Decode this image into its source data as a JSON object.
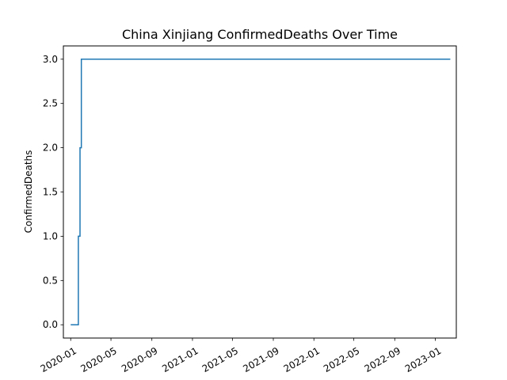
{
  "chart_data": {
    "type": "line",
    "title": "China Xinjiang ConfirmedDeaths Over Time",
    "xlabel": "",
    "ylabel": "ConfirmedDeaths",
    "x_axis_type": "date",
    "xlim": [
      "2019-12-10",
      "2023-03-05"
    ],
    "ylim": [
      -0.15,
      3.15
    ],
    "grid": false,
    "legend": "none",
    "x_ticks": [
      "2020-01",
      "2020-05",
      "2020-09",
      "2021-01",
      "2021-05",
      "2021-09",
      "2022-01",
      "2022-05",
      "2022-09",
      "2023-01"
    ],
    "y_ticks": [
      "0.0",
      "0.5",
      "1.0",
      "1.5",
      "2.0",
      "2.5",
      "3.0"
    ],
    "series": [
      {
        "color": "#1f77b4",
        "step": true,
        "x": [
          "2020-01-01",
          "2020-01-23",
          "2020-01-24",
          "2020-01-28",
          "2020-01-29",
          "2020-02-01",
          "2020-02-02",
          "2023-02-15"
        ],
        "y": [
          0,
          0,
          1,
          1,
          2,
          2,
          3,
          3
        ]
      }
    ]
  }
}
